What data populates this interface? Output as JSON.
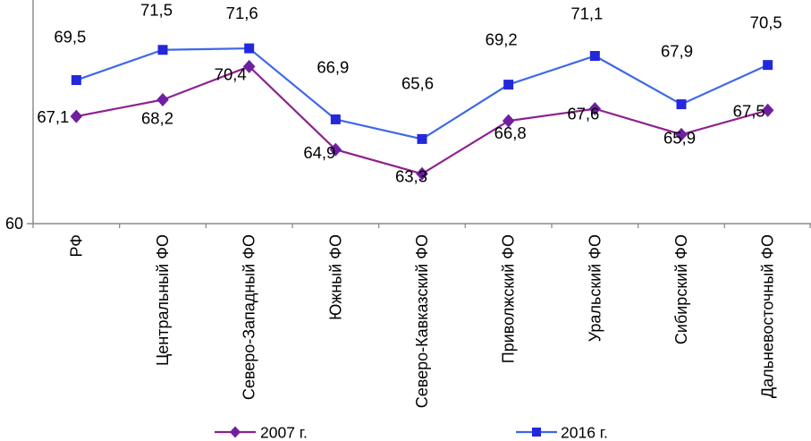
{
  "chart_data": {
    "type": "line",
    "title": "",
    "xlabel": "",
    "ylabel": "",
    "categories": [
      "РФ",
      "Центральный ФО",
      "Северо-Западный ФО",
      "Южный ФО",
      "Северо-Кавказский ФО",
      "Приволжский ФО",
      "Уральский ФО",
      "Сибирский ФО",
      "Дальневосточный ФО"
    ],
    "series": [
      {
        "name": "2007 г.",
        "marker": "diamond",
        "line_color": "#8F218F",
        "marker_color": "#6F1F9F",
        "values": [
          67.1,
          68.2,
          70.4,
          64.9,
          63.3,
          66.8,
          67.6,
          65.9,
          67.5
        ]
      },
      {
        "name": "2016 г.",
        "marker": "square",
        "line_color": "#3E68E8",
        "marker_color": "#2328DC",
        "values": [
          69.5,
          71.5,
          71.6,
          66.9,
          65.6,
          69.2,
          71.1,
          67.9,
          70.5
        ]
      }
    ],
    "ylim": [
      60,
      74.8
    ],
    "y_tick_labels": [
      "60"
    ],
    "decimal_separator": ",",
    "grid": false,
    "legend_position": "bottom",
    "data_labels": true,
    "axis_color": "#8C8C8C",
    "label_color": "#000000"
  }
}
